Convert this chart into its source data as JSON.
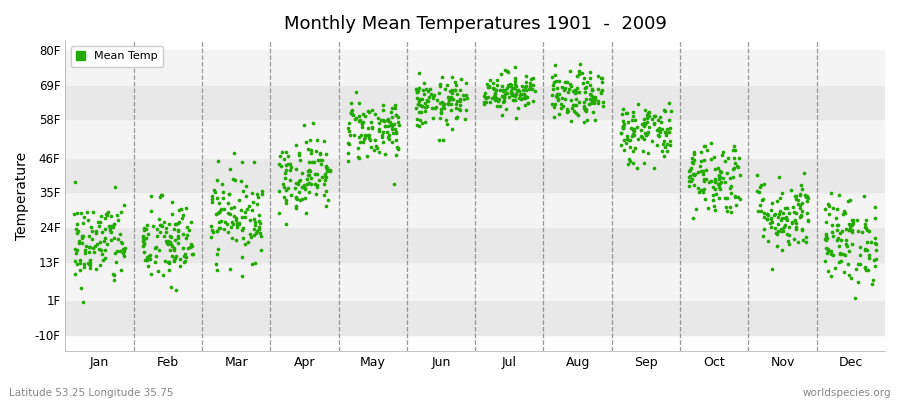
{
  "title": "Monthly Mean Temperatures 1901  -  2009",
  "ylabel": "Temperature",
  "ytick_labels": [
    "-10F",
    "1F",
    "13F",
    "24F",
    "35F",
    "46F",
    "58F",
    "69F",
    "80F"
  ],
  "ytick_values": [
    -10,
    1,
    13,
    24,
    35,
    46,
    58,
    69,
    80
  ],
  "ylim": [
    -15,
    83
  ],
  "xlim": [
    0.5,
    12.5
  ],
  "months": [
    "Jan",
    "Feb",
    "Mar",
    "Apr",
    "May",
    "Jun",
    "Jul",
    "Aug",
    "Sep",
    "Oct",
    "Nov",
    "Dec"
  ],
  "month_centers": [
    1,
    2,
    3,
    4,
    5,
    6,
    7,
    8,
    9,
    10,
    11,
    12
  ],
  "mean_temps_F": [
    19,
    19,
    28,
    41,
    55,
    63,
    67,
    65,
    54,
    40,
    28,
    20
  ],
  "std_temps_F": [
    7,
    7,
    7,
    6,
    5,
    4,
    3,
    4,
    5,
    6,
    6,
    7
  ],
  "dot_color": "#22aa00",
  "dot_size": 7,
  "legend_label": "Mean Temp",
  "bg_color": "#ffffff",
  "stripe_colors": [
    "#e8e8e8",
    "#f4f4f4"
  ],
  "hband_boundaries": [
    -10,
    1,
    13,
    24,
    35,
    46,
    58,
    69,
    80
  ],
  "footer_left": "Latitude 53.25 Longitude 35.75",
  "footer_right": "worldspecies.org",
  "n_years": 109,
  "seed": 42
}
